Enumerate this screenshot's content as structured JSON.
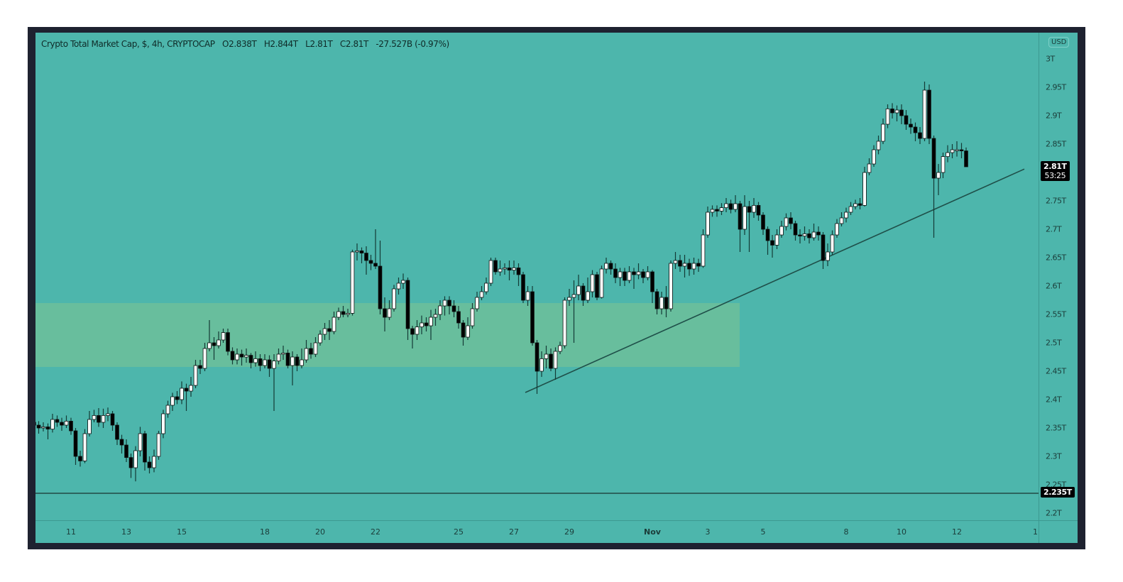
{
  "legend": {
    "symbol": "Crypto Total Market Cap, $, 4h, CRYPTOCAP",
    "open": "O2.838T",
    "high": "H2.844T",
    "low": "L2.81T",
    "close": "C2.81T",
    "change": "-27.527B (-0.97%)"
  },
  "currency_button": "USD",
  "last_price_tag": {
    "price": "2.81T",
    "countdown": "53:25"
  },
  "hline_tag": "2.235T",
  "colors": {
    "background": "#4db6ac",
    "zone": "#6cbf9b",
    "up_body": "#ffffff",
    "down_body": "#000000",
    "wick": "#143a36",
    "frame": "#1e2230",
    "lines": "#1f4f49"
  },
  "chart_data": {
    "type": "candlestick",
    "title": "Crypto Total Market Cap, $, 4h, CRYPTOCAP",
    "ylim": [
      2.18,
      3.02
    ],
    "y_unit": "T",
    "y_ticks": [
      "3T",
      "2.95T",
      "2.9T",
      "2.85T",
      "2.81T",
      "2.75T",
      "2.7T",
      "2.65T",
      "2.6T",
      "2.55T",
      "2.5T",
      "2.45T",
      "2.4T",
      "2.35T",
      "2.3T",
      "2.25T",
      "2.2T"
    ],
    "y_tick_values": [
      3.0,
      2.95,
      2.9,
      2.85,
      null,
      2.75,
      2.7,
      2.65,
      2.6,
      2.55,
      2.5,
      2.45,
      2.4,
      2.35,
      2.3,
      2.25,
      2.2
    ],
    "x_ticks": [
      "11",
      "13",
      "15",
      "18",
      "20",
      "22",
      "25",
      "27",
      "29",
      "Nov",
      "3",
      "5",
      "8",
      "10",
      "12",
      "1"
    ],
    "grid": false,
    "horizontal_line": 2.235,
    "zone": {
      "low": 2.4575,
      "high": 2.57,
      "from_tick": "11",
      "to_date": "Nov 4"
    },
    "trendline": {
      "from": 2.4125,
      "to": 2.806
    },
    "candles": [
      [
        2.36,
        2.368,
        2.348,
        2.355
      ],
      [
        2.355,
        2.362,
        2.34,
        2.35
      ],
      [
        2.35,
        2.36,
        2.344,
        2.352
      ],
      [
        2.352,
        2.358,
        2.33,
        2.348
      ],
      [
        2.348,
        2.375,
        2.342,
        2.365
      ],
      [
        2.365,
        2.372,
        2.352,
        2.36
      ],
      [
        2.36,
        2.368,
        2.345,
        2.355
      ],
      [
        2.355,
        2.372,
        2.35,
        2.362
      ],
      [
        2.362,
        2.368,
        2.338,
        2.345
      ],
      [
        2.345,
        2.35,
        2.285,
        2.3
      ],
      [
        2.3,
        2.31,
        2.282,
        2.292
      ],
      [
        2.292,
        2.348,
        2.288,
        2.34
      ],
      [
        2.34,
        2.38,
        2.335,
        2.365
      ],
      [
        2.365,
        2.382,
        2.36,
        2.372
      ],
      [
        2.372,
        2.385,
        2.352,
        2.36
      ],
      [
        2.36,
        2.384,
        2.35,
        2.372
      ],
      [
        2.372,
        2.386,
        2.362,
        2.375
      ],
      [
        2.375,
        2.38,
        2.345,
        2.355
      ],
      [
        2.355,
        2.36,
        2.32,
        2.33
      ],
      [
        2.33,
        2.338,
        2.305,
        2.32
      ],
      [
        2.32,
        2.33,
        2.29,
        2.298
      ],
      [
        2.298,
        2.305,
        2.262,
        2.28
      ],
      [
        2.28,
        2.318,
        2.256,
        2.31
      ],
      [
        2.31,
        2.352,
        2.3,
        2.34
      ],
      [
        2.34,
        2.345,
        2.275,
        2.29
      ],
      [
        2.29,
        2.3,
        2.27,
        2.28
      ],
      [
        2.28,
        2.312,
        2.272,
        2.3
      ],
      [
        2.3,
        2.345,
        2.294,
        2.34
      ],
      [
        2.34,
        2.382,
        2.332,
        2.375
      ],
      [
        2.375,
        2.398,
        2.368,
        2.39
      ],
      [
        2.39,
        2.412,
        2.38,
        2.405
      ],
      [
        2.405,
        2.415,
        2.392,
        2.4
      ],
      [
        2.4,
        2.432,
        2.392,
        2.42
      ],
      [
        2.42,
        2.428,
        2.38,
        2.415
      ],
      [
        2.415,
        2.44,
        2.405,
        2.425
      ],
      [
        2.425,
        2.47,
        2.42,
        2.46
      ],
      [
        2.46,
        2.47,
        2.445,
        2.455
      ],
      [
        2.455,
        2.5,
        2.45,
        2.49
      ],
      [
        2.49,
        2.54,
        2.485,
        2.5
      ],
      [
        2.5,
        2.51,
        2.47,
        2.495
      ],
      [
        2.495,
        2.52,
        2.49,
        2.505
      ],
      [
        2.505,
        2.525,
        2.5,
        2.518
      ],
      [
        2.518,
        2.525,
        2.478,
        2.485
      ],
      [
        2.485,
        2.492,
        2.462,
        2.47
      ],
      [
        2.47,
        2.49,
        2.462,
        2.48
      ],
      [
        2.48,
        2.488,
        2.46,
        2.475
      ],
      [
        2.475,
        2.49,
        2.465,
        2.478
      ],
      [
        2.478,
        2.482,
        2.455,
        2.465
      ],
      [
        2.465,
        2.485,
        2.458,
        2.472
      ],
      [
        2.472,
        2.48,
        2.45,
        2.46
      ],
      [
        2.46,
        2.48,
        2.455,
        2.47
      ],
      [
        2.47,
        2.478,
        2.44,
        2.455
      ],
      [
        2.455,
        2.48,
        2.38,
        2.468
      ],
      [
        2.468,
        2.49,
        2.462,
        2.48
      ],
      [
        2.48,
        2.495,
        2.47,
        2.482
      ],
      [
        2.482,
        2.488,
        2.455,
        2.46
      ],
      [
        2.46,
        2.485,
        2.425,
        2.475
      ],
      [
        2.475,
        2.48,
        2.45,
        2.46
      ],
      [
        2.46,
        2.49,
        2.455,
        2.47
      ],
      [
        2.47,
        2.505,
        2.465,
        2.49
      ],
      [
        2.49,
        2.5,
        2.472,
        2.48
      ],
      [
        2.48,
        2.51,
        2.475,
        2.5
      ],
      [
        2.5,
        2.522,
        2.495,
        2.515
      ],
      [
        2.515,
        2.535,
        2.505,
        2.525
      ],
      [
        2.525,
        2.54,
        2.505,
        2.52
      ],
      [
        2.52,
        2.555,
        2.515,
        2.545
      ],
      [
        2.545,
        2.562,
        2.54,
        2.555
      ],
      [
        2.555,
        2.565,
        2.545,
        2.55
      ],
      [
        2.55,
        2.56,
        2.545,
        2.552
      ],
      [
        2.552,
        2.664,
        2.548,
        2.66
      ],
      [
        2.66,
        2.675,
        2.645,
        2.662
      ],
      [
        2.662,
        2.668,
        2.64,
        2.658
      ],
      [
        2.658,
        2.67,
        2.62,
        2.645
      ],
      [
        2.645,
        2.655,
        2.628,
        2.64
      ],
      [
        2.64,
        2.7,
        2.63,
        2.635
      ],
      [
        2.635,
        2.68,
        2.55,
        2.56
      ],
      [
        2.56,
        2.58,
        2.52,
        2.545
      ],
      [
        2.545,
        2.575,
        2.54,
        2.56
      ],
      [
        2.56,
        2.602,
        2.555,
        2.595
      ],
      [
        2.595,
        2.615,
        2.585,
        2.605
      ],
      [
        2.605,
        2.622,
        2.595,
        2.61
      ],
      [
        2.61,
        2.615,
        2.505,
        2.525
      ],
      [
        2.525,
        2.53,
        2.49,
        2.515
      ],
      [
        2.515,
        2.54,
        2.505,
        2.528
      ],
      [
        2.528,
        2.548,
        2.515,
        2.535
      ],
      [
        2.535,
        2.545,
        2.52,
        2.53
      ],
      [
        2.53,
        2.558,
        2.505,
        2.545
      ],
      [
        2.545,
        2.56,
        2.53,
        2.55
      ],
      [
        2.55,
        2.575,
        2.54,
        2.565
      ],
      [
        2.565,
        2.582,
        2.548,
        2.575
      ],
      [
        2.575,
        2.582,
        2.55,
        2.565
      ],
      [
        2.565,
        2.575,
        2.545,
        2.555
      ],
      [
        2.555,
        2.565,
        2.525,
        2.535
      ],
      [
        2.535,
        2.54,
        2.495,
        2.51
      ],
      [
        2.51,
        2.545,
        2.505,
        2.53
      ],
      [
        2.53,
        2.57,
        2.525,
        2.56
      ],
      [
        2.56,
        2.59,
        2.555,
        2.58
      ],
      [
        2.58,
        2.6,
        2.575,
        2.59
      ],
      [
        2.59,
        2.615,
        2.585,
        2.605
      ],
      [
        2.605,
        2.65,
        2.6,
        2.645
      ],
      [
        2.645,
        2.65,
        2.62,
        2.625
      ],
      [
        2.625,
        2.645,
        2.618,
        2.63
      ],
      [
        2.63,
        2.64,
        2.62,
        2.632
      ],
      [
        2.632,
        2.645,
        2.61,
        2.628
      ],
      [
        2.628,
        2.645,
        2.62,
        2.632
      ],
      [
        2.632,
        2.64,
        2.6,
        2.62
      ],
      [
        2.62,
        2.625,
        2.57,
        2.575
      ],
      [
        2.575,
        2.6,
        2.565,
        2.59
      ],
      [
        2.59,
        2.6,
        2.495,
        2.5
      ],
      [
        2.5,
        2.505,
        2.41,
        2.45
      ],
      [
        2.45,
        2.485,
        2.44,
        2.472
      ],
      [
        2.472,
        2.495,
        2.455,
        2.48
      ],
      [
        2.48,
        2.49,
        2.45,
        2.455
      ],
      [
        2.455,
        2.492,
        2.435,
        2.485
      ],
      [
        2.485,
        2.502,
        2.48,
        2.495
      ],
      [
        2.495,
        2.58,
        2.49,
        2.575
      ],
      [
        2.575,
        2.595,
        2.565,
        2.58
      ],
      [
        2.58,
        2.61,
        2.5,
        2.585
      ],
      [
        2.585,
        2.62,
        2.575,
        2.6
      ],
      [
        2.6,
        2.605,
        2.565,
        2.575
      ],
      [
        2.575,
        2.615,
        2.57,
        2.59
      ],
      [
        2.59,
        2.628,
        2.58,
        2.62
      ],
      [
        2.62,
        2.625,
        2.575,
        2.58
      ],
      [
        2.58,
        2.636,
        2.578,
        2.63
      ],
      [
        2.63,
        2.65,
        2.622,
        2.64
      ],
      [
        2.64,
        2.645,
        2.62,
        2.63
      ],
      [
        2.63,
        2.64,
        2.605,
        2.615
      ],
      [
        2.615,
        2.632,
        2.6,
        2.625
      ],
      [
        2.625,
        2.632,
        2.6,
        2.61
      ],
      [
        2.61,
        2.635,
        2.605,
        2.625
      ],
      [
        2.625,
        2.632,
        2.595,
        2.62
      ],
      [
        2.62,
        2.64,
        2.612,
        2.625
      ],
      [
        2.625,
        2.63,
        2.605,
        2.615
      ],
      [
        2.615,
        2.635,
        2.61,
        2.625
      ],
      [
        2.625,
        2.628,
        2.57,
        2.59
      ],
      [
        2.59,
        2.595,
        2.55,
        2.56
      ],
      [
        2.56,
        2.59,
        2.55,
        2.58
      ],
      [
        2.58,
        2.6,
        2.545,
        2.56
      ],
      [
        2.56,
        2.645,
        2.555,
        2.64
      ],
      [
        2.64,
        2.66,
        2.63,
        2.645
      ],
      [
        2.645,
        2.655,
        2.625,
        2.635
      ],
      [
        2.635,
        2.655,
        2.615,
        2.64
      ],
      [
        2.64,
        2.648,
        2.618,
        2.63
      ],
      [
        2.63,
        2.65,
        2.62,
        2.64
      ],
      [
        2.64,
        2.648,
        2.625,
        2.635
      ],
      [
        2.635,
        2.7,
        2.632,
        2.69
      ],
      [
        2.69,
        2.74,
        2.685,
        2.73
      ],
      [
        2.73,
        2.742,
        2.722,
        2.735
      ],
      [
        2.735,
        2.742,
        2.722,
        2.732
      ],
      [
        2.732,
        2.746,
        2.725,
        2.738
      ],
      [
        2.738,
        2.755,
        2.73,
        2.745
      ],
      [
        2.745,
        2.752,
        2.728,
        2.735
      ],
      [
        2.735,
        2.76,
        2.73,
        2.745
      ],
      [
        2.745,
        2.75,
        2.66,
        2.7
      ],
      [
        2.7,
        2.76,
        2.69,
        2.74
      ],
      [
        2.74,
        2.75,
        2.66,
        2.73
      ],
      [
        2.73,
        2.755,
        2.72,
        2.742
      ],
      [
        2.742,
        2.748,
        2.715,
        2.725
      ],
      [
        2.725,
        2.73,
        2.69,
        2.7
      ],
      [
        2.7,
        2.705,
        2.655,
        2.68
      ],
      [
        2.68,
        2.69,
        2.65,
        2.672
      ],
      [
        2.672,
        2.7,
        2.665,
        2.69
      ],
      [
        2.69,
        2.715,
        2.685,
        2.705
      ],
      [
        2.705,
        2.728,
        2.698,
        2.72
      ],
      [
        2.72,
        2.73,
        2.7,
        2.71
      ],
      [
        2.71,
        2.715,
        2.68,
        2.69
      ],
      [
        2.69,
        2.7,
        2.675,
        2.688
      ],
      [
        2.688,
        2.705,
        2.68,
        2.692
      ],
      [
        2.692,
        2.7,
        2.675,
        2.685
      ],
      [
        2.685,
        2.71,
        2.68,
        2.695
      ],
      [
        2.695,
        2.705,
        2.68,
        2.69
      ],
      [
        2.69,
        2.695,
        2.63,
        2.645
      ],
      [
        2.645,
        2.675,
        2.635,
        2.66
      ],
      [
        2.66,
        2.698,
        2.655,
        2.69
      ],
      [
        2.69,
        2.718,
        2.685,
        2.71
      ],
      [
        2.71,
        2.73,
        2.705,
        2.72
      ],
      [
        2.72,
        2.738,
        2.712,
        2.73
      ],
      [
        2.73,
        2.748,
        2.725,
        2.74
      ],
      [
        2.74,
        2.752,
        2.735,
        2.745
      ],
      [
        2.745,
        2.755,
        2.735,
        2.742
      ],
      [
        2.742,
        2.81,
        2.74,
        2.8
      ],
      [
        2.8,
        2.825,
        2.795,
        2.815
      ],
      [
        2.815,
        2.848,
        2.81,
        2.84
      ],
      [
        2.84,
        2.865,
        2.832,
        2.855
      ],
      [
        2.855,
        2.895,
        2.85,
        2.885
      ],
      [
        2.885,
        2.92,
        2.878,
        2.912
      ],
      [
        2.912,
        2.922,
        2.895,
        2.905
      ],
      [
        2.905,
        2.918,
        2.89,
        2.91
      ],
      [
        2.91,
        2.92,
        2.885,
        2.9
      ],
      [
        2.9,
        2.91,
        2.875,
        2.885
      ],
      [
        2.885,
        2.895,
        2.868,
        2.88
      ],
      [
        2.88,
        2.888,
        2.855,
        2.87
      ],
      [
        2.87,
        2.88,
        2.85,
        2.86
      ],
      [
        2.86,
        2.96,
        2.855,
        2.945
      ],
      [
        2.945,
        2.955,
        2.85,
        2.86
      ],
      [
        2.86,
        2.865,
        2.685,
        2.79
      ],
      [
        2.79,
        2.815,
        2.76,
        2.8
      ],
      [
        2.8,
        2.835,
        2.79,
        2.828
      ],
      [
        2.828,
        2.848,
        2.818,
        2.835
      ],
      [
        2.835,
        2.85,
        2.825,
        2.84
      ],
      [
        2.84,
        2.855,
        2.828,
        2.84
      ],
      [
        2.84,
        2.852,
        2.825,
        2.838
      ],
      [
        2.838,
        2.844,
        2.81,
        2.81
      ]
    ]
  }
}
